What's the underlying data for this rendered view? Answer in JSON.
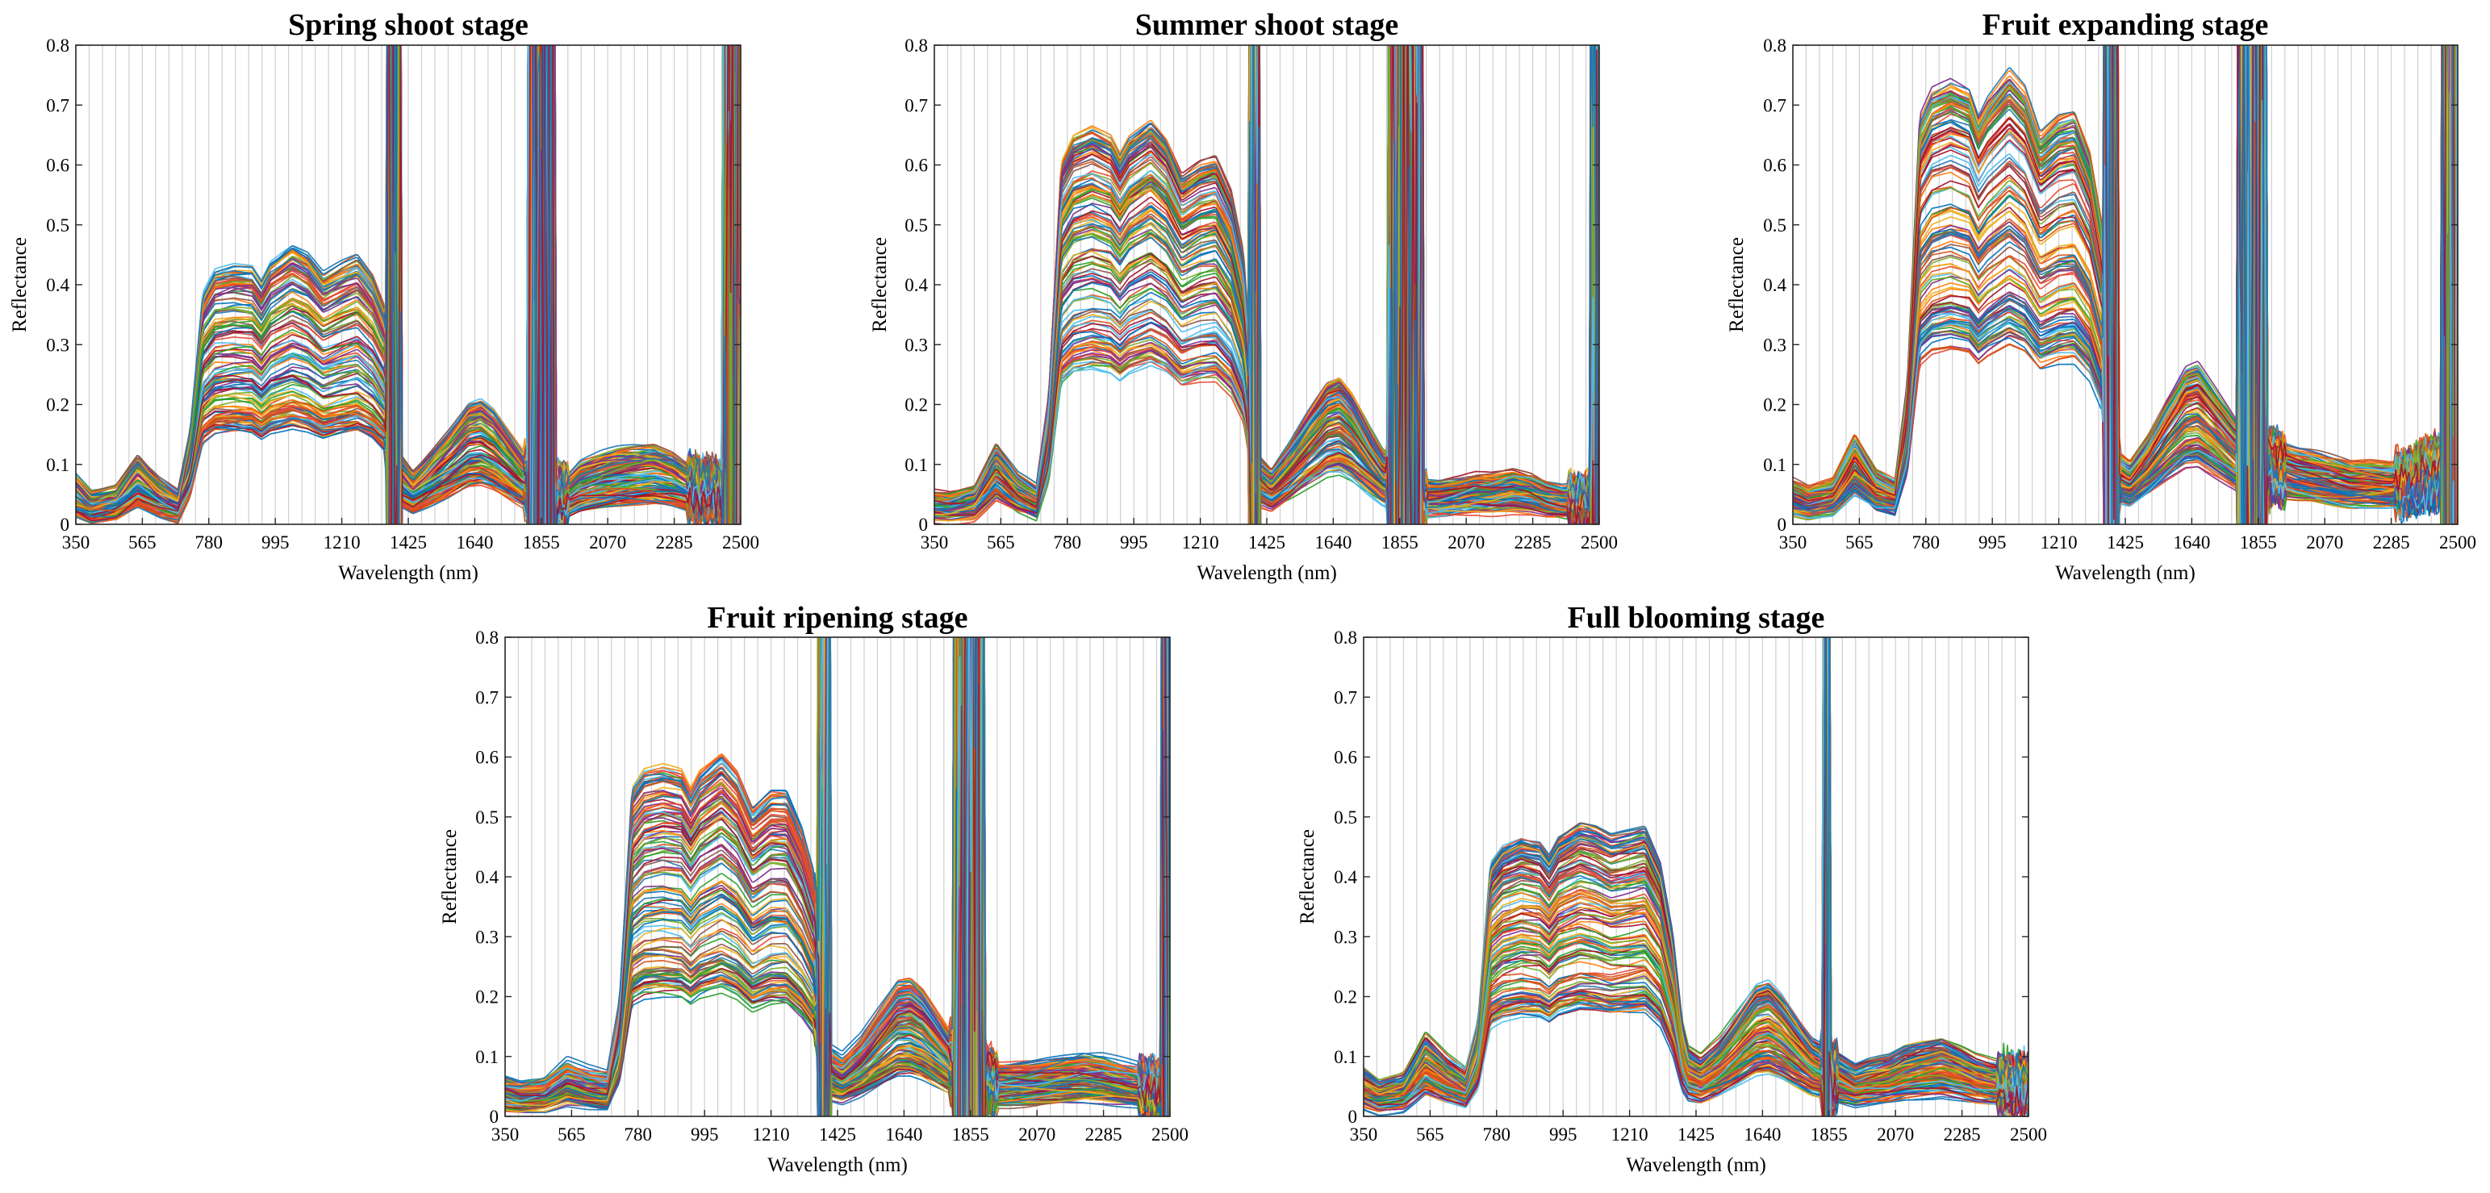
{
  "palette": [
    "#0072BD",
    "#D95319",
    "#EDB120",
    "#7E2F8E",
    "#77AC30",
    "#4DBEEE",
    "#A2142F",
    "#1F77B4",
    "#E64B35",
    "#2CA02C",
    "#FF7F0E",
    "#8C564B"
  ],
  "axes_style": {
    "frame_color": "#262626",
    "grid_color": "#cfcfcf"
  },
  "chart_data": [
    {
      "id": "spring",
      "type": "line",
      "title": "Spring shoot stage",
      "xlabel": "Wavelength (nm)",
      "ylabel": "Reflectance",
      "xlim": [
        350,
        2500
      ],
      "ylim": [
        0,
        0.8
      ],
      "xticks": [
        350,
        565,
        780,
        995,
        1210,
        1425,
        1640,
        1855,
        2070,
        2285,
        2500
      ],
      "yticks": [
        0,
        0.1,
        0.2,
        0.3,
        0.4,
        0.5,
        0.6,
        0.7,
        0.8
      ],
      "xgrid_step_nm": 43,
      "n_spectra": 140,
      "mean_spectrum": [
        [
          350,
          0.045
        ],
        [
          400,
          0.028
        ],
        [
          480,
          0.035
        ],
        [
          550,
          0.07
        ],
        [
          620,
          0.045
        ],
        [
          680,
          0.03
        ],
        [
          720,
          0.1
        ],
        [
          760,
          0.25
        ],
        [
          800,
          0.275
        ],
        [
          860,
          0.28
        ],
        [
          920,
          0.278
        ],
        [
          950,
          0.262
        ],
        [
          980,
          0.282
        ],
        [
          1050,
          0.3
        ],
        [
          1100,
          0.29
        ],
        [
          1150,
          0.268
        ],
        [
          1210,
          0.28
        ],
        [
          1260,
          0.288
        ],
        [
          1310,
          0.265
        ],
        [
          1350,
          0.23
        ],
        [
          1380,
          0.12
        ],
        [
          1400,
          0.07
        ],
        [
          1440,
          0.052
        ],
        [
          1500,
          0.075
        ],
        [
          1560,
          0.1
        ],
        [
          1620,
          0.128
        ],
        [
          1660,
          0.132
        ],
        [
          1700,
          0.12
        ],
        [
          1760,
          0.09
        ],
        [
          1800,
          0.07
        ],
        [
          1940,
          0.045
        ],
        [
          1980,
          0.06
        ],
        [
          2050,
          0.07
        ],
        [
          2100,
          0.075
        ],
        [
          2150,
          0.078
        ],
        [
          2220,
          0.08
        ],
        [
          2280,
          0.072
        ],
        [
          2330,
          0.06
        ],
        [
          2380,
          0.055
        ],
        [
          2440,
          0.05
        ]
      ],
      "spread_multiplier": [
        0.55,
        1.55
      ],
      "noise_bands_nm": [
        [
          1350,
          1400
        ],
        [
          1800,
          1940
        ],
        [
          2330,
          2500
        ]
      ],
      "saturated_bands_nm": [
        [
          1355,
          1400
        ],
        [
          1810,
          1900
        ],
        [
          2440,
          2500
        ]
      ]
    },
    {
      "id": "summer",
      "type": "line",
      "title": "Summer shoot stage",
      "xlabel": "Wavelength (nm)",
      "ylabel": "Reflectance",
      "xlim": [
        350,
        2500
      ],
      "ylim": [
        0,
        0.8
      ],
      "xticks": [
        350,
        565,
        780,
        995,
        1210,
        1425,
        1640,
        1855,
        2070,
        2285,
        2500
      ],
      "yticks": [
        0,
        0.1,
        0.2,
        0.3,
        0.4,
        0.5,
        0.6,
        0.7,
        0.8
      ],
      "xgrid_step_nm": 43,
      "n_spectra": 140,
      "mean_spectrum": [
        [
          350,
          0.03
        ],
        [
          400,
          0.028
        ],
        [
          480,
          0.035
        ],
        [
          550,
          0.085
        ],
        [
          620,
          0.05
        ],
        [
          680,
          0.035
        ],
        [
          720,
          0.14
        ],
        [
          760,
          0.4
        ],
        [
          800,
          0.43
        ],
        [
          860,
          0.44
        ],
        [
          920,
          0.43
        ],
        [
          950,
          0.41
        ],
        [
          980,
          0.43
        ],
        [
          1050,
          0.45
        ],
        [
          1100,
          0.43
        ],
        [
          1150,
          0.39
        ],
        [
          1210,
          0.405
        ],
        [
          1260,
          0.41
        ],
        [
          1310,
          0.37
        ],
        [
          1350,
          0.3
        ],
        [
          1380,
          0.14
        ],
        [
          1400,
          0.07
        ],
        [
          1440,
          0.055
        ],
        [
          1500,
          0.085
        ],
        [
          1560,
          0.12
        ],
        [
          1620,
          0.152
        ],
        [
          1660,
          0.158
        ],
        [
          1700,
          0.14
        ],
        [
          1760,
          0.1
        ],
        [
          1800,
          0.075
        ],
        [
          1940,
          0.04
        ],
        [
          1980,
          0.04
        ],
        [
          2050,
          0.045
        ],
        [
          2100,
          0.05
        ],
        [
          2150,
          0.05
        ],
        [
          2220,
          0.055
        ],
        [
          2280,
          0.05
        ],
        [
          2330,
          0.04
        ],
        [
          2380,
          0.035
        ],
        [
          2440,
          0.035
        ]
      ],
      "spread_multiplier": [
        0.6,
        1.5
      ],
      "noise_bands_nm": [
        [
          1365,
          1400
        ],
        [
          1810,
          1940
        ],
        [
          2400,
          2500
        ]
      ],
      "saturated_bands_nm": [
        [
          1370,
          1400
        ],
        [
          1820,
          1930
        ],
        [
          2470,
          2500
        ]
      ]
    },
    {
      "id": "fruit-expanding",
      "type": "line",
      "title": "Fruit expanding stage",
      "xlabel": "Wavelength (nm)",
      "ylabel": "Reflectance",
      "xlim": [
        350,
        2500
      ],
      "ylim": [
        0,
        0.8
      ],
      "xticks": [
        350,
        565,
        780,
        995,
        1210,
        1425,
        1640,
        1855,
        2070,
        2285,
        2500
      ],
      "yticks": [
        0,
        0.1,
        0.2,
        0.3,
        0.4,
        0.5,
        0.6,
        0.7,
        0.8
      ],
      "xgrid_step_nm": 43,
      "n_spectra": 140,
      "mean_spectrum": [
        [
          350,
          0.04
        ],
        [
          400,
          0.032
        ],
        [
          480,
          0.04
        ],
        [
          550,
          0.09
        ],
        [
          620,
          0.05
        ],
        [
          680,
          0.04
        ],
        [
          720,
          0.15
        ],
        [
          760,
          0.44
        ],
        [
          800,
          0.47
        ],
        [
          860,
          0.48
        ],
        [
          920,
          0.47
        ],
        [
          950,
          0.44
        ],
        [
          980,
          0.46
        ],
        [
          1050,
          0.49
        ],
        [
          1100,
          0.47
        ],
        [
          1150,
          0.42
        ],
        [
          1210,
          0.44
        ],
        [
          1260,
          0.445
        ],
        [
          1310,
          0.4
        ],
        [
          1350,
          0.32
        ],
        [
          1380,
          0.12
        ],
        [
          1400,
          0.07
        ],
        [
          1440,
          0.06
        ],
        [
          1500,
          0.09
        ],
        [
          1560,
          0.13
        ],
        [
          1620,
          0.165
        ],
        [
          1660,
          0.17
        ],
        [
          1700,
          0.15
        ],
        [
          1760,
          0.12
        ],
        [
          1800,
          0.1
        ],
        [
          1940,
          0.08
        ],
        [
          1980,
          0.075
        ],
        [
          2050,
          0.07
        ],
        [
          2100,
          0.065
        ],
        [
          2150,
          0.06
        ],
        [
          2220,
          0.06
        ],
        [
          2280,
          0.058
        ],
        [
          2330,
          0.06
        ],
        [
          2380,
          0.07
        ],
        [
          2440,
          0.08
        ]
      ],
      "spread_multiplier": [
        0.6,
        1.55
      ],
      "noise_bands_nm": [
        [
          1350,
          1410
        ],
        [
          1800,
          1940
        ],
        [
          2300,
          2500
        ]
      ],
      "saturated_bands_nm": [
        [
          1355,
          1400
        ],
        [
          1790,
          1880
        ],
        [
          2450,
          2500
        ]
      ]
    },
    {
      "id": "fruit-ripening",
      "type": "line",
      "title": "Fruit ripening stage",
      "xlabel": "Wavelength (nm)",
      "ylabel": "Reflectance",
      "xlim": [
        350,
        2500
      ],
      "ylim": [
        0,
        0.8
      ],
      "xticks": [
        350,
        565,
        780,
        995,
        1210,
        1425,
        1640,
        1855,
        2070,
        2285,
        2500
      ],
      "yticks": [
        0,
        0.1,
        0.2,
        0.3,
        0.4,
        0.5,
        0.6,
        0.7,
        0.8
      ],
      "xgrid_step_nm": 43,
      "n_spectra": 140,
      "mean_spectrum": [
        [
          350,
          0.035
        ],
        [
          400,
          0.03
        ],
        [
          480,
          0.035
        ],
        [
          550,
          0.055
        ],
        [
          620,
          0.045
        ],
        [
          680,
          0.04
        ],
        [
          720,
          0.12
        ],
        [
          760,
          0.35
        ],
        [
          800,
          0.37
        ],
        [
          860,
          0.375
        ],
        [
          920,
          0.37
        ],
        [
          950,
          0.35
        ],
        [
          980,
          0.37
        ],
        [
          1050,
          0.39
        ],
        [
          1100,
          0.37
        ],
        [
          1150,
          0.33
        ],
        [
          1210,
          0.35
        ],
        [
          1260,
          0.35
        ],
        [
          1310,
          0.31
        ],
        [
          1350,
          0.26
        ],
        [
          1380,
          0.13
        ],
        [
          1400,
          0.07
        ],
        [
          1440,
          0.06
        ],
        [
          1500,
          0.08
        ],
        [
          1560,
          0.11
        ],
        [
          1620,
          0.14
        ],
        [
          1660,
          0.142
        ],
        [
          1700,
          0.13
        ],
        [
          1760,
          0.1
        ],
        [
          1800,
          0.08
        ],
        [
          1940,
          0.05
        ],
        [
          1980,
          0.05
        ],
        [
          2050,
          0.052
        ],
        [
          2100,
          0.055
        ],
        [
          2150,
          0.058
        ],
        [
          2220,
          0.062
        ],
        [
          2280,
          0.06
        ],
        [
          2330,
          0.055
        ],
        [
          2380,
          0.05
        ],
        [
          2440,
          0.045
        ]
      ],
      "spread_multiplier": [
        0.55,
        1.55
      ],
      "noise_bands_nm": [
        [
          1350,
          1405
        ],
        [
          1790,
          1940
        ],
        [
          2400,
          2500
        ]
      ],
      "saturated_bands_nm": [
        [
          1360,
          1400
        ],
        [
          1800,
          1900
        ],
        [
          2470,
          2500
        ]
      ]
    },
    {
      "id": "full-blooming",
      "type": "line",
      "title": "Full blooming stage",
      "xlabel": "Wavelength (nm)",
      "ylabel": "Reflectance",
      "xlim": [
        350,
        2500
      ],
      "ylim": [
        0,
        0.8
      ],
      "xticks": [
        350,
        565,
        780,
        995,
        1210,
        1425,
        1640,
        1855,
        2070,
        2285,
        2500
      ],
      "yticks": [
        0,
        0.1,
        0.2,
        0.3,
        0.4,
        0.5,
        0.6,
        0.7,
        0.8
      ],
      "xgrid_step_nm": 43,
      "n_spectra": 140,
      "mean_spectrum": [
        [
          350,
          0.045
        ],
        [
          400,
          0.032
        ],
        [
          480,
          0.04
        ],
        [
          550,
          0.085
        ],
        [
          620,
          0.06
        ],
        [
          680,
          0.045
        ],
        [
          720,
          0.1
        ],
        [
          760,
          0.28
        ],
        [
          800,
          0.3
        ],
        [
          860,
          0.31
        ],
        [
          920,
          0.305
        ],
        [
          950,
          0.29
        ],
        [
          980,
          0.31
        ],
        [
          1050,
          0.325
        ],
        [
          1100,
          0.32
        ],
        [
          1150,
          0.31
        ],
        [
          1210,
          0.315
        ],
        [
          1260,
          0.32
        ],
        [
          1310,
          0.28
        ],
        [
          1350,
          0.2
        ],
        [
          1380,
          0.1
        ],
        [
          1400,
          0.07
        ],
        [
          1440,
          0.06
        ],
        [
          1500,
          0.08
        ],
        [
          1560,
          0.11
        ],
        [
          1620,
          0.14
        ],
        [
          1660,
          0.145
        ],
        [
          1700,
          0.13
        ],
        [
          1760,
          0.1
        ],
        [
          1800,
          0.08
        ],
        [
          1940,
          0.05
        ],
        [
          1980,
          0.055
        ],
        [
          2050,
          0.06
        ],
        [
          2100,
          0.07
        ],
        [
          2150,
          0.075
        ],
        [
          2220,
          0.08
        ],
        [
          2280,
          0.07
        ],
        [
          2330,
          0.06
        ],
        [
          2380,
          0.055
        ],
        [
          2440,
          0.05
        ]
      ],
      "spread_multiplier": [
        0.55,
        1.5
      ],
      "noise_bands_nm": [
        [
          1830,
          1880
        ],
        [
          2400,
          2500
        ]
      ],
      "saturated_bands_nm": [
        [
          1838,
          1856
        ]
      ]
    }
  ]
}
